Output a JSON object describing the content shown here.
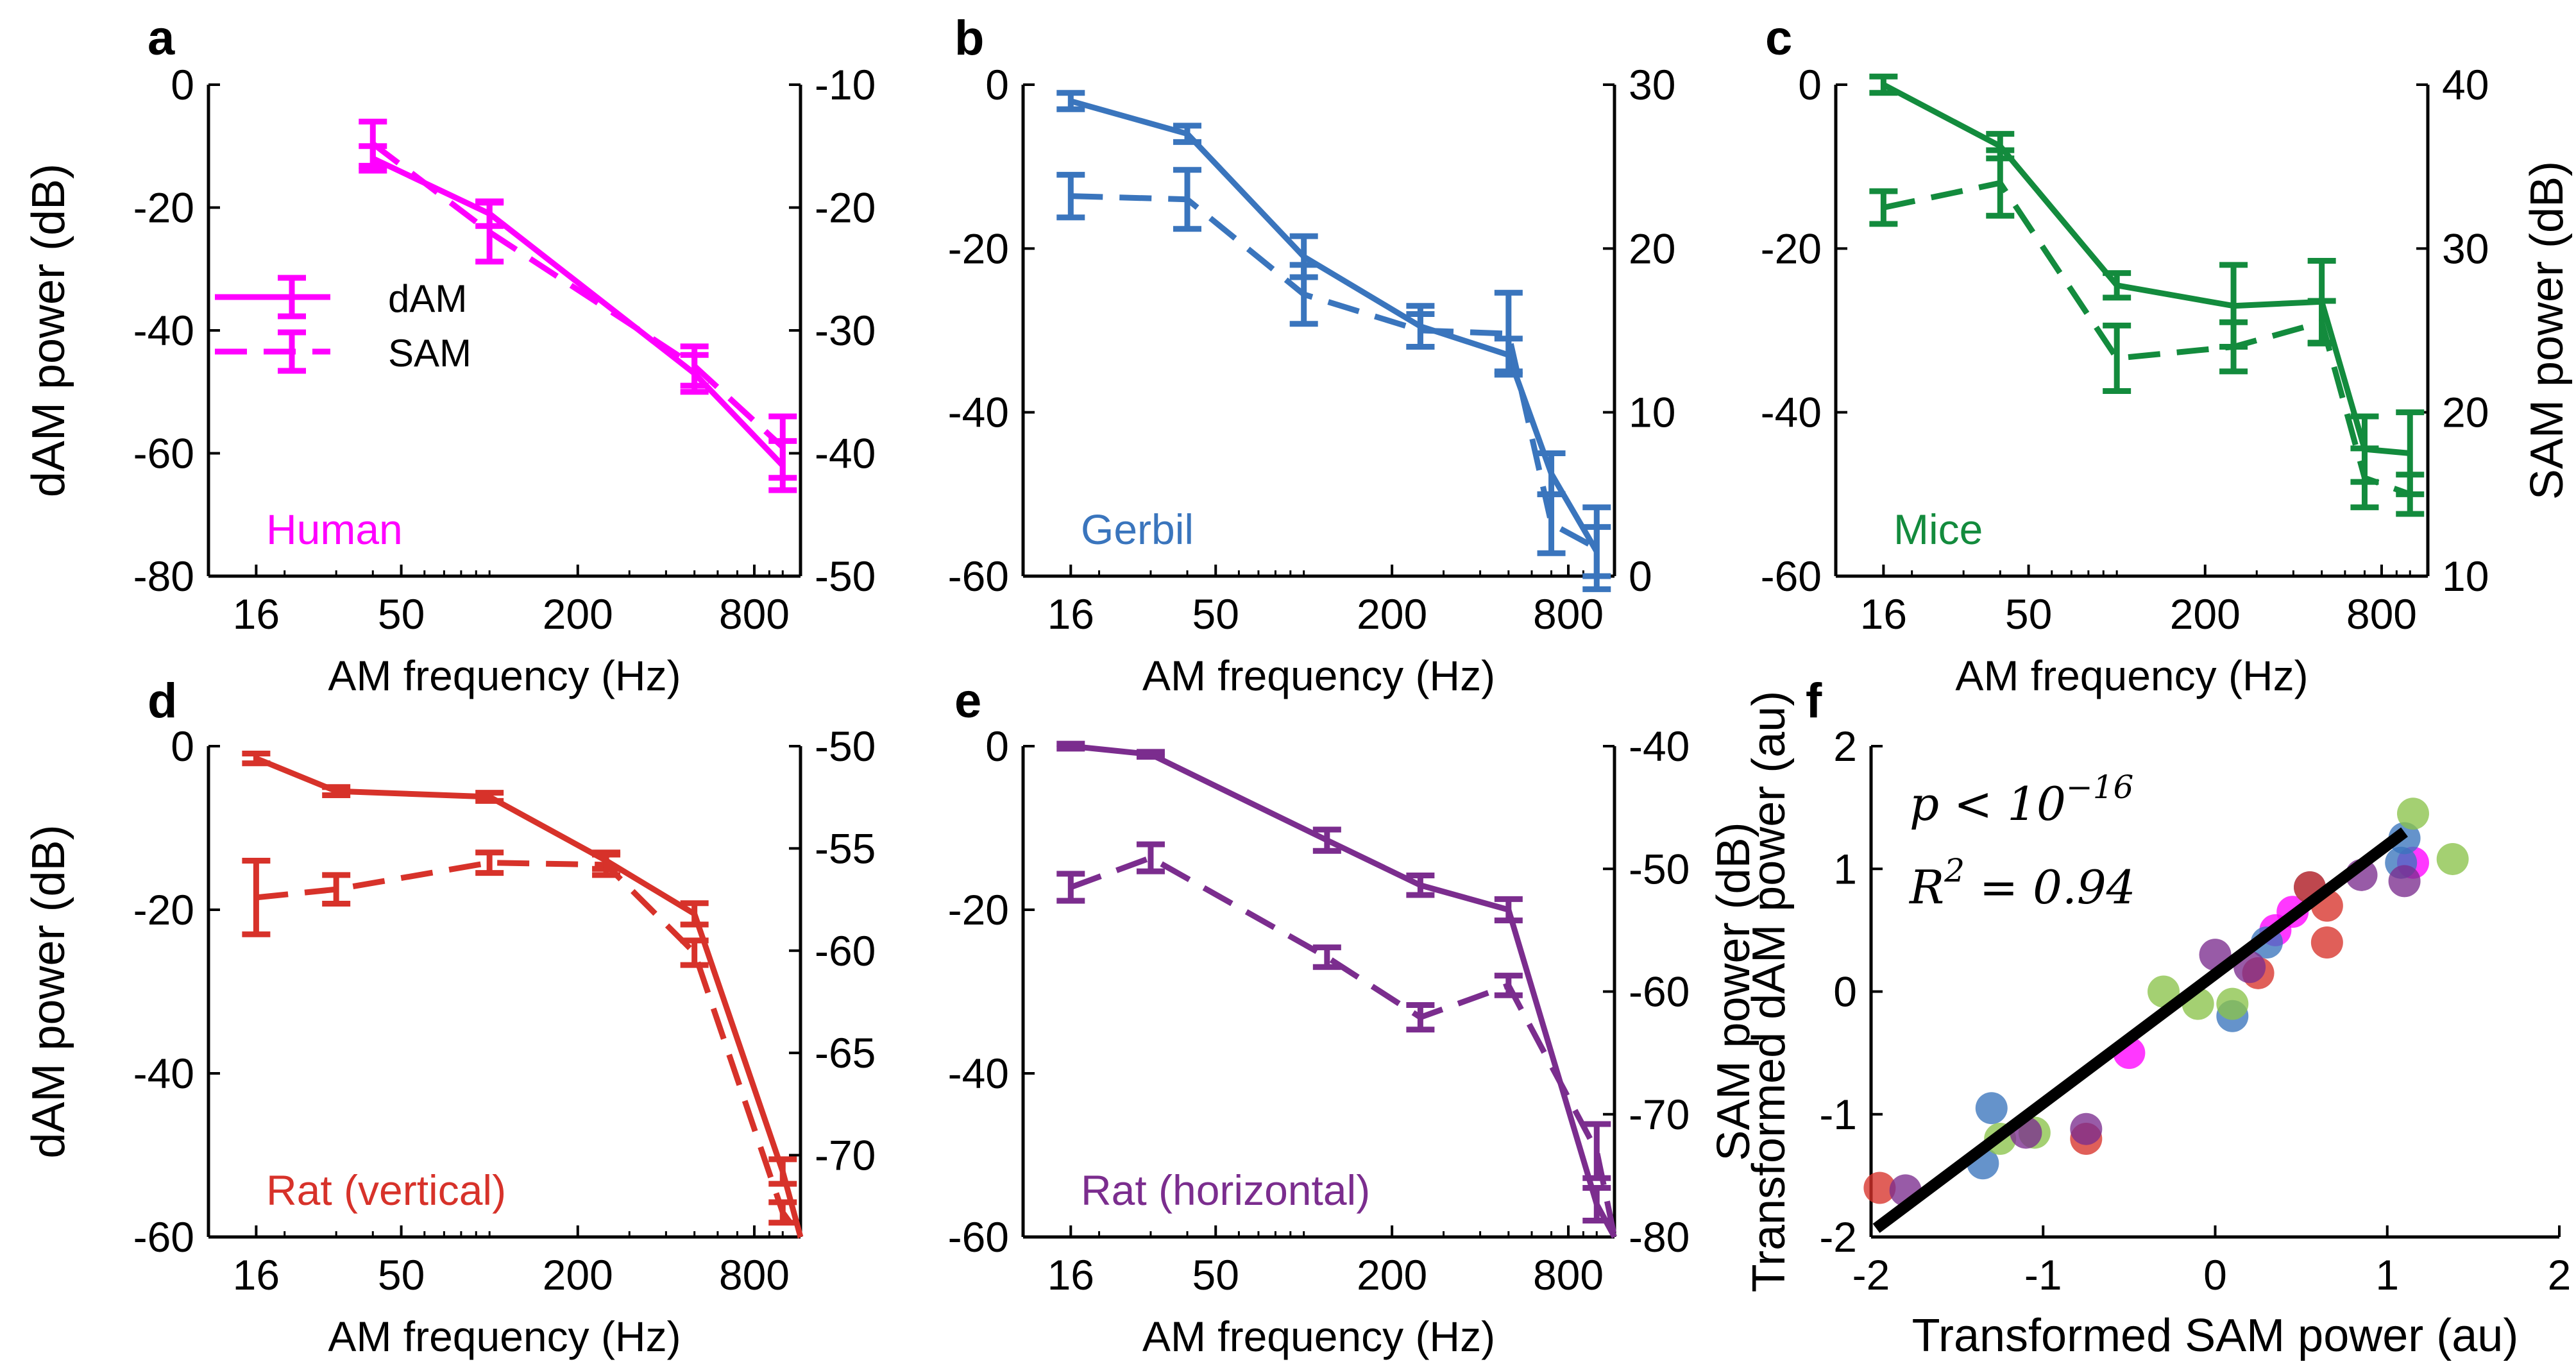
{
  "chart_data": [
    {
      "panel": "a",
      "type": "line",
      "x_tick_labels": [
        "16",
        "50",
        "200",
        "800"
      ],
      "x_ticks": [
        16,
        50,
        200,
        800
      ],
      "xlim": [
        11,
        1150
      ],
      "xscale": "log",
      "xlabel": "AM frequency (Hz)",
      "ylabel": "dAM power (dB)",
      "ylim": [
        -80,
        0
      ],
      "yticks": [
        0,
        -20,
        -40,
        -60,
        -80
      ],
      "y2lim": [
        -50,
        -10
      ],
      "y2ticks": [
        -10,
        -20,
        -30,
        -40,
        -50
      ],
      "color": "#ff00ff",
      "annotation": "Human",
      "legend": {
        "position": "middle-left",
        "entries": [
          "dAM",
          "SAM"
        ]
      },
      "series": [
        {
          "name": "dAM",
          "axis": "left",
          "style": "solid",
          "x": [
            40,
            100,
            500,
            1000
          ],
          "y": [
            -12,
            -21,
            -47,
            -62
          ],
          "err": [
            2,
            2,
            3,
            4
          ]
        },
        {
          "name": "SAM",
          "axis": "right",
          "style": "dashed",
          "x": [
            40,
            100,
            500,
            1000
          ],
          "y": [
            -14.8,
            -22,
            -32.9,
            -39.5
          ],
          "err": [
            1.8,
            2.4,
            1.6,
            2.5
          ]
        }
      ]
    },
    {
      "panel": "b",
      "type": "line",
      "x_tick_labels": [
        "16",
        "50",
        "200",
        "800"
      ],
      "x_ticks": [
        16,
        50,
        200,
        800
      ],
      "xlim": [
        11,
        1150
      ],
      "xscale": "log",
      "xlabel": "AM frequency (Hz)",
      "ylim": [
        -60,
        0
      ],
      "yticks": [
        0,
        -20,
        -40,
        -60
      ],
      "y2lim": [
        0,
        30
      ],
      "y2ticks": [
        30,
        20,
        10,
        0
      ],
      "color": "#3a75bd",
      "annotation": "Gerbil",
      "series": [
        {
          "axis": "left",
          "style": "solid",
          "x": [
            16,
            40,
            100,
            250,
            500,
            700,
            1000
          ],
          "y": [
            -2,
            -6,
            -21,
            -29.5,
            -33,
            -47.5,
            -57
          ],
          "err": [
            1,
            1,
            2.5,
            2.5,
            2,
            2.5,
            3
          ]
        },
        {
          "axis": "right",
          "style": "dashed",
          "x": [
            16,
            40,
            100,
            250,
            500,
            700,
            1000
          ],
          "y": [
            23.2,
            23,
            17.2,
            15,
            14.8,
            3.2,
            1.7
          ],
          "err": [
            1.3,
            1.8,
            1.8,
            1,
            2.5,
            1.8,
            2.5
          ]
        }
      ]
    },
    {
      "panel": "c",
      "type": "line",
      "x_tick_labels": [
        "16",
        "50",
        "200",
        "800"
      ],
      "x_ticks": [
        16,
        50,
        200,
        800
      ],
      "xlim": [
        11,
        1150
      ],
      "xscale": "log",
      "xlabel": "AM frequency (Hz)",
      "ylim": [
        -60,
        0
      ],
      "yticks": [
        0,
        -20,
        -40,
        -60
      ],
      "y2lim": [
        10,
        40
      ],
      "y2ticks": [
        40,
        30,
        20,
        10
      ],
      "y2label": "SAM power (dB)",
      "color": "#138b3d",
      "annotation": "Mice",
      "series": [
        {
          "axis": "left",
          "style": "solid",
          "x": [
            16,
            40,
            100,
            250,
            500,
            700,
            1000
          ],
          "y": [
            0,
            -7.5,
            -24.5,
            -27,
            -26.5,
            -44.5,
            -45
          ],
          "err": [
            1,
            1.5,
            1.5,
            5,
            5,
            4,
            5
          ]
        },
        {
          "axis": "right",
          "style": "dashed",
          "x": [
            16,
            40,
            100,
            250,
            500,
            700,
            1000
          ],
          "y": [
            32.5,
            34,
            23.3,
            24,
            25.5,
            16,
            15
          ],
          "err": [
            1,
            2,
            2,
            1.5,
            1.3,
            1.8,
            1.2
          ]
        }
      ]
    },
    {
      "panel": "d",
      "type": "line",
      "x_tick_labels": [
        "16",
        "50",
        "200",
        "800"
      ],
      "x_ticks": [
        16,
        50,
        200,
        800
      ],
      "xlim": [
        11,
        1150
      ],
      "xscale": "log",
      "xlabel": "AM frequency (Hz)",
      "ylabel": "dAM power (dB)",
      "ylim": [
        -60,
        0
      ],
      "yticks": [
        0,
        -20,
        -40,
        -60
      ],
      "y2lim": [
        -74,
        -50
      ],
      "y2ticks": [
        -50,
        -55,
        -60,
        -65,
        -70
      ],
      "color": "#d7322a",
      "annotation": "Rat (vertical)",
      "series": [
        {
          "axis": "left",
          "style": "solid",
          "x": [
            16,
            30,
            100,
            250,
            500,
            1000,
            1150
          ],
          "y": [
            -1.5,
            -5.5,
            -6.2,
            -14,
            -20.5,
            -52,
            -60
          ],
          "err": [
            0.6,
            0.5,
            0.5,
            1,
            1.3,
            1.5,
            0
          ]
        },
        {
          "axis": "right",
          "style": "dashed",
          "x": [
            16,
            30,
            100,
            250,
            500,
            1000,
            1150
          ],
          "y": [
            -57.4,
            -57,
            -55.7,
            -55.8,
            -60.1,
            -72.8,
            -74
          ],
          "err": [
            1.8,
            0.7,
            0.5,
            0.5,
            0.6,
            0.5,
            0
          ]
        }
      ]
    },
    {
      "panel": "e",
      "type": "line",
      "x_tick_labels": [
        "16",
        "50",
        "200",
        "800"
      ],
      "x_ticks": [
        16,
        50,
        200,
        800
      ],
      "xlim": [
        11,
        1150
      ],
      "xscale": "log",
      "xlabel": "AM frequency (Hz)",
      "ylim": [
        -60,
        0
      ],
      "yticks": [
        0,
        -20,
        -40,
        -60
      ],
      "y2lim": [
        -80,
        -40
      ],
      "y2ticks": [
        -40,
        -50,
        -60,
        -70,
        -80
      ],
      "y2label": "SAM power (dB)",
      "color": "#7b2d8e",
      "annotation": "Rat (horizontal)",
      "series": [
        {
          "axis": "left",
          "style": "solid",
          "x": [
            16,
            30,
            120,
            250,
            500,
            1000,
            1150
          ],
          "y": [
            0,
            -1,
            -11.5,
            -17,
            -20,
            -56,
            -60
          ],
          "err": [
            0.3,
            0.3,
            1.3,
            1.2,
            1.3,
            2,
            0
          ]
        },
        {
          "axis": "right",
          "style": "dashed",
          "x": [
            16,
            30,
            120,
            250,
            500,
            1000,
            1150
          ],
          "y": [
            -51.5,
            -49.1,
            -57.2,
            -62.1,
            -59.5,
            -73,
            -80
          ],
          "err": [
            1.1,
            1.1,
            0.8,
            1,
            0.8,
            2.2,
            0
          ]
        }
      ]
    },
    {
      "panel": "f",
      "type": "scatter",
      "xlabel": "Transformed SAM power (au)",
      "ylabel": "Transformed dAM power (au)",
      "xlim": [
        -2,
        2
      ],
      "ylim": [
        -2,
        2
      ],
      "xticks": [
        -2,
        -1,
        0,
        1,
        2
      ],
      "yticks": [
        2,
        1,
        0,
        -1,
        -2
      ],
      "annotation_p": "p < 10",
      "annotation_p_exponent": "−16",
      "annotation_r2": "R",
      "annotation_r2_exponent": "2",
      "annotation_r2_value": " = 0.94",
      "fit_line": {
        "x": [
          -1.97,
          1.1
        ],
        "y": [
          -1.93,
          1.3
        ]
      },
      "points": [
        {
          "x": -0.5,
          "y": -0.5,
          "color": "#ff00ff"
        },
        {
          "x": 0.35,
          "y": 0.5,
          "color": "#ff00ff"
        },
        {
          "x": 0.45,
          "y": 0.65,
          "color": "#ff00ff"
        },
        {
          "x": 1.15,
          "y": 1.05,
          "color": "#ff00ff"
        },
        {
          "x": -1.35,
          "y": -1.4,
          "color": "#3a75bd"
        },
        {
          "x": -1.3,
          "y": -0.95,
          "color": "#3a75bd"
        },
        {
          "x": 0.1,
          "y": -0.2,
          "color": "#3a75bd"
        },
        {
          "x": 0.3,
          "y": 0.4,
          "color": "#3a75bd"
        },
        {
          "x": 0.55,
          "y": 0.85,
          "color": "#3a75bd"
        },
        {
          "x": 1.1,
          "y": 1.25,
          "color": "#3a75bd"
        },
        {
          "x": 1.08,
          "y": 1.05,
          "color": "#3a75bd"
        },
        {
          "x": -1.25,
          "y": -1.2,
          "color": "#8bc34a"
        },
        {
          "x": -1.05,
          "y": -1.15,
          "color": "#8bc34a"
        },
        {
          "x": -0.3,
          "y": 0.0,
          "color": "#8bc34a"
        },
        {
          "x": -0.1,
          "y": -0.1,
          "color": "#8bc34a"
        },
        {
          "x": 0.1,
          "y": -0.1,
          "color": "#8bc34a"
        },
        {
          "x": 1.15,
          "y": 1.45,
          "color": "#8bc34a"
        },
        {
          "x": 1.38,
          "y": 1.08,
          "color": "#8bc34a"
        },
        {
          "x": -1.95,
          "y": -1.6,
          "color": "#d7322a"
        },
        {
          "x": -0.75,
          "y": -1.2,
          "color": "#d7322a"
        },
        {
          "x": 0.25,
          "y": 0.15,
          "color": "#d7322a"
        },
        {
          "x": 0.55,
          "y": 0.85,
          "color": "#d7322a"
        },
        {
          "x": 0.65,
          "y": 0.7,
          "color": "#d7322a"
        },
        {
          "x": 0.65,
          "y": 0.4,
          "color": "#d7322a"
        },
        {
          "x": -1.8,
          "y": -1.62,
          "color": "#7b2d8e"
        },
        {
          "x": -1.1,
          "y": -1.15,
          "color": "#7b2d8e"
        },
        {
          "x": -0.75,
          "y": -1.12,
          "color": "#7b2d8e"
        },
        {
          "x": 0.0,
          "y": 0.3,
          "color": "#7b2d8e"
        },
        {
          "x": 0.2,
          "y": 0.2,
          "color": "#7b2d8e"
        },
        {
          "x": 0.85,
          "y": 0.95,
          "color": "#7b2d8e"
        },
        {
          "x": 1.1,
          "y": 0.9,
          "color": "#7b2d8e"
        }
      ]
    }
  ]
}
